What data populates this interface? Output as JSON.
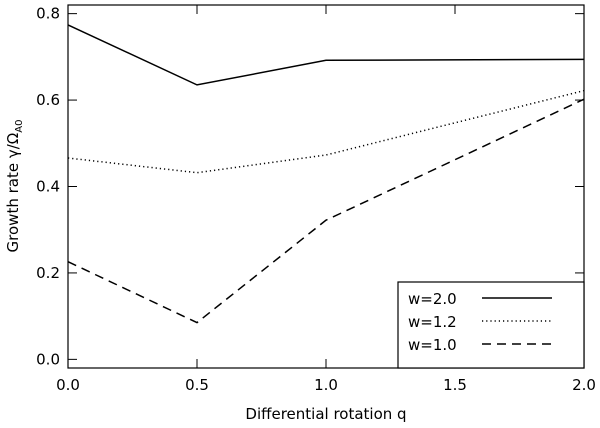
{
  "chart_data": {
    "type": "line",
    "title": "",
    "xlabel": "Differential rotation q",
    "ylabel_main": "Growth rate γ/Ω",
    "ylabel_sub": "A0",
    "xlim": [
      0.0,
      2.0
    ],
    "ylim": [
      -0.02,
      0.82
    ],
    "xticks": [
      0.0,
      0.5,
      1.0,
      1.5,
      2.0
    ],
    "xtick_labels": [
      "0.0",
      "0.5",
      "1.0",
      "1.5",
      "2.0"
    ],
    "yticks": [
      0.0,
      0.2,
      0.4,
      0.6,
      0.8
    ],
    "ytick_labels": [
      "0.0",
      "0.2",
      "0.4",
      "0.6",
      "0.8"
    ],
    "legend_position": "bottom-right",
    "series": [
      {
        "name": "w=2.0",
        "style": "solid",
        "x": [
          0.0,
          0.5,
          1.0,
          2.0
        ],
        "values": [
          0.774,
          0.635,
          0.692,
          0.694
        ]
      },
      {
        "name": "w=1.2",
        "style": "dotted",
        "x": [
          0.0,
          0.5,
          1.0,
          2.0
        ],
        "values": [
          0.466,
          0.432,
          0.473,
          0.622
        ]
      },
      {
        "name": "w=1.0",
        "style": "dashed",
        "x": [
          0.0,
          0.5,
          1.0,
          2.0
        ],
        "values": [
          0.226,
          0.085,
          0.322,
          0.602
        ]
      }
    ]
  }
}
